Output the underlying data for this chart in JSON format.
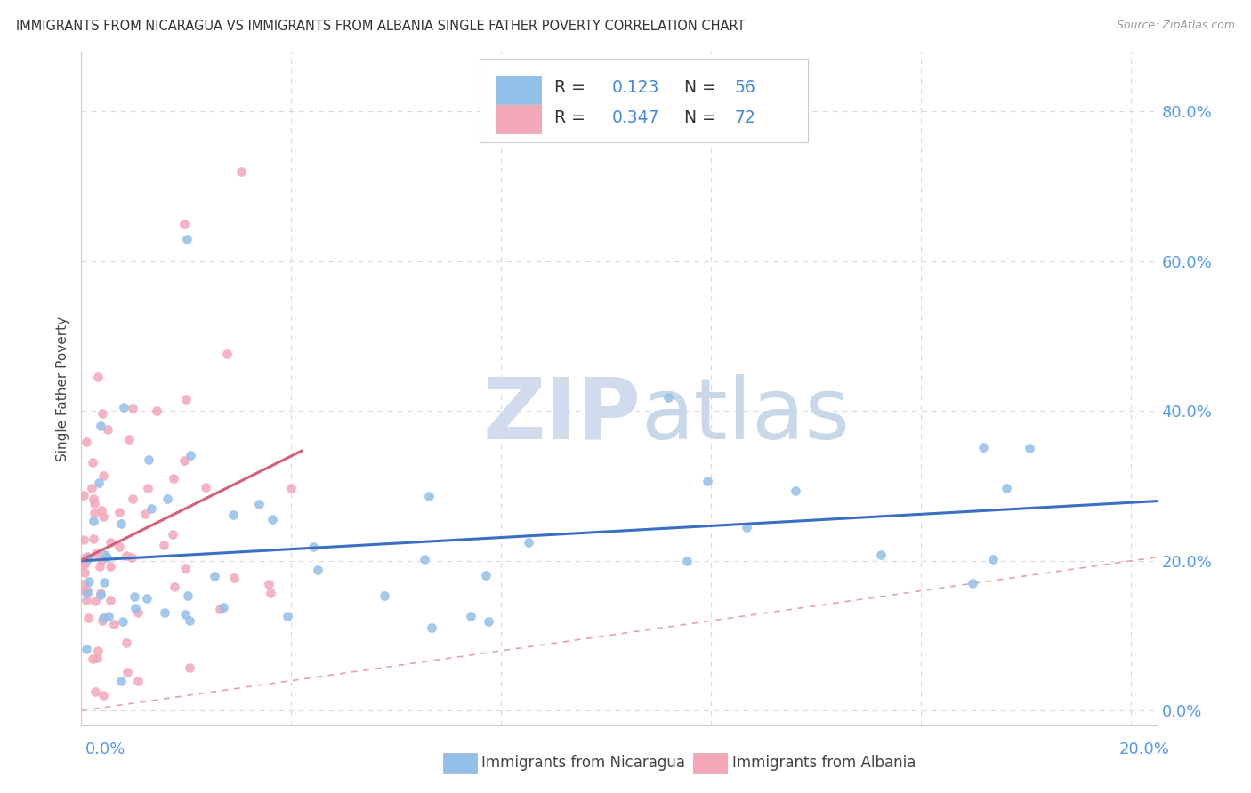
{
  "title": "IMMIGRANTS FROM NICARAGUA VS IMMIGRANTS FROM ALBANIA SINGLE FATHER POVERTY CORRELATION CHART",
  "source": "Source: ZipAtlas.com",
  "ylabel": "Single Father Poverty",
  "xlim": [
    0.0,
    0.205
  ],
  "ylim": [
    -0.02,
    0.88
  ],
  "ytick_vals": [
    0.0,
    0.2,
    0.4,
    0.6,
    0.8
  ],
  "ytick_labels_right": [
    "0.0%",
    "20.0%",
    "40.0%",
    "60.0%",
    "80.0%"
  ],
  "legend_R_nic": "0.123",
  "legend_N_nic": "56",
  "legend_R_alb": "0.347",
  "legend_N_alb": "72",
  "nicaragua_color": "#92c0e8",
  "albania_color": "#f4a7b9",
  "nicaragua_line_color": "#3a6fc4",
  "albania_line_color": "#d45f7a",
  "diagonal_color": "#e8a0b0",
  "background_color": "#ffffff",
  "grid_color": "#d8d8e8",
  "watermark_zip_color": "#d0dcee",
  "watermark_atlas_color": "#c8d8e8",
  "axis_label_color": "#5599ee",
  "title_color": "#333333",
  "source_color": "#999999",
  "legend_text_color": "#333333",
  "legend_value_color": "#4488dd",
  "nic_seed": 42,
  "alb_seed": 77,
  "n_nic": 56,
  "n_alb": 72
}
